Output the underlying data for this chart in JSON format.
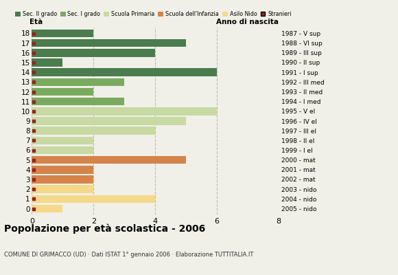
{
  "ages": [
    18,
    17,
    16,
    15,
    14,
    13,
    12,
    11,
    10,
    9,
    8,
    7,
    6,
    5,
    4,
    3,
    2,
    1,
    0
  ],
  "years": [
    "1987 - V sup",
    "1988 - VI sup",
    "1989 - III sup",
    "1990 - II sup",
    "1991 - I sup",
    "1992 - III med",
    "1993 - II med",
    "1994 - I med",
    "1995 - V el",
    "1996 - IV el",
    "1997 - III el",
    "1998 - II el",
    "1999 - I el",
    "2000 - mat",
    "2001 - mat",
    "2002 - mat",
    "2003 - nido",
    "2004 - nido",
    "2005 - nido"
  ],
  "values": [
    2,
    5,
    4,
    1,
    6,
    3,
    2,
    3,
    6,
    5,
    4,
    2,
    2,
    5,
    2,
    2,
    2,
    4,
    1
  ],
  "colors": [
    "#4a7c4e",
    "#4a7c4e",
    "#4a7c4e",
    "#4a7c4e",
    "#4a7c4e",
    "#7aaa5f",
    "#7aaa5f",
    "#7aaa5f",
    "#c8d9a4",
    "#c8d9a4",
    "#c8d9a4",
    "#c8d9a4",
    "#c8d9a4",
    "#d4844a",
    "#d4844a",
    "#d4844a",
    "#f5d98a",
    "#f5d98a",
    "#f5d98a"
  ],
  "stranieri_ages": [
    18,
    17,
    16,
    15,
    14,
    13,
    12,
    11,
    10,
    9,
    8,
    7,
    6,
    5,
    4,
    3,
    2,
    1,
    0
  ],
  "stranieri_color": "#992222",
  "legend_labels": [
    "Sec. II grado",
    "Sec. I grado",
    "Scuola Primaria",
    "Scuola dell'Infanzia",
    "Asilo Nido",
    "Stranieri"
  ],
  "legend_colors": [
    "#4a7c4e",
    "#7aaa5f",
    "#c8d9a4",
    "#d4844a",
    "#f5d98a",
    "#992222"
  ],
  "title": "Popolazione per età scolastica - 2006",
  "subtitle": "COMUNE DI GRIMACCO (UD) · Dati ISTAT 1° gennaio 2006 · Elaborazione TUTTITALIA.IT",
  "xlabel_eta": "Età",
  "xlabel_anno": "Anno di nascita",
  "xlim": [
    0,
    8
  ],
  "xticks": [
    0,
    2,
    4,
    6,
    8
  ],
  "bg_color": "#f0f0e8",
  "grid_color": "#bbbbbb",
  "bar_height": 0.82
}
